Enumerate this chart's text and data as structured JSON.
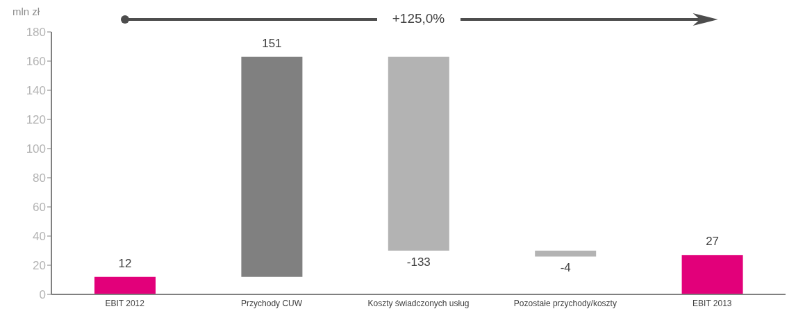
{
  "chart_data": {
    "type": "bar",
    "ylabel": "mln zł",
    "categories": [
      "EBIT 2012",
      "Przychody CUW",
      "Koszty świadczonych usług",
      "Pozostałe przychody/koszty",
      "EBIT 2013"
    ],
    "values": [
      12,
      151,
      -133,
      -4,
      27
    ],
    "base": [
      0,
      12,
      163,
      30,
      0
    ],
    "colors": [
      "#e2007a",
      "#808080",
      "#b3b3b3",
      "#b3b3b3",
      "#e2007a"
    ],
    "ylim": [
      0,
      180
    ],
    "yticks": [
      0,
      20,
      40,
      60,
      80,
      100,
      120,
      140,
      160,
      180
    ],
    "data_labels": true,
    "annotations": [
      "+125,0%"
    ]
  }
}
